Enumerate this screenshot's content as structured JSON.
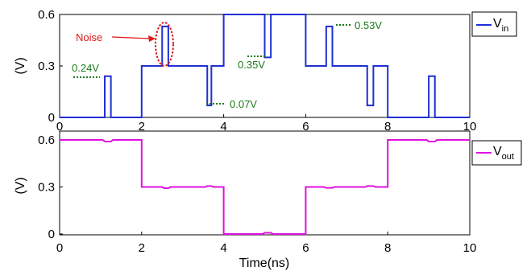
{
  "chart_data": [
    {
      "type": "line",
      "ylabel": "(V)",
      "xlabel": "",
      "xlim": [
        0,
        10
      ],
      "ylim": [
        0,
        0.6
      ],
      "xticks": [
        "0",
        "2",
        "4",
        "6",
        "8",
        "10"
      ],
      "yticks": [
        "0",
        "0.3",
        "0.6"
      ],
      "grid": false,
      "legend": "right-top",
      "series": [
        {
          "name": "V_in",
          "legend_main": "V",
          "legend_sub": "in",
          "color": "#1f2fd4",
          "x": [
            0,
            1.1,
            1.1,
            1.25,
            1.25,
            2,
            2,
            2.5,
            2.5,
            2.65,
            2.65,
            3.6,
            3.6,
            3.7,
            3.7,
            4,
            4,
            5,
            5,
            5.15,
            5.15,
            6,
            6,
            6.5,
            6.5,
            6.65,
            6.65,
            7.5,
            7.5,
            7.65,
            7.65,
            8,
            8,
            9,
            9,
            9.15,
            9.15,
            10
          ],
          "y": [
            0,
            0,
            0.24,
            0.24,
            0,
            0,
            0.3,
            0.3,
            0.53,
            0.53,
            0.3,
            0.3,
            0.07,
            0.07,
            0.3,
            0.3,
            0.6,
            0.6,
            0.35,
            0.35,
            0.6,
            0.6,
            0.3,
            0.3,
            0.53,
            0.53,
            0.3,
            0.3,
            0.07,
            0.07,
            0.3,
            0.3,
            0,
            0,
            0.24,
            0.24,
            0,
            0
          ]
        }
      ],
      "annotations": [
        {
          "text": "Noise",
          "color": "#e01818"
        },
        {
          "text": "0.24V",
          "color": "#1a7a1a"
        },
        {
          "text": "0.07V",
          "color": "#1a7a1a"
        },
        {
          "text": "0.35V",
          "color": "#1a7a1a"
        },
        {
          "text": "0.53V",
          "color": "#1a7a1a"
        }
      ]
    },
    {
      "type": "line",
      "ylabel": "(V)",
      "xlabel": "Time(ns)",
      "xlim": [
        0,
        10
      ],
      "ylim": [
        0,
        0.6
      ],
      "xticks": [
        "0",
        "2",
        "4",
        "6",
        "8",
        "10"
      ],
      "yticks": [
        "0",
        "0.3",
        "0.6"
      ],
      "grid": false,
      "legend": "right-top",
      "series": [
        {
          "name": "V_out",
          "legend_main": "V",
          "legend_sub": "out",
          "color": "#e010e0",
          "x": [
            0,
            1.05,
            1.1,
            1.25,
            1.3,
            2,
            2,
            2.5,
            2.55,
            2.65,
            2.7,
            3.55,
            3.6,
            3.7,
            3.75,
            4,
            4,
            4.95,
            5,
            5.15,
            5.2,
            6,
            6,
            6.45,
            6.5,
            6.65,
            6.7,
            7.45,
            7.5,
            7.65,
            7.7,
            8,
            8,
            8.95,
            9,
            9.15,
            9.2,
            10
          ],
          "y": [
            0.6,
            0.6,
            0.59,
            0.59,
            0.6,
            0.6,
            0.3,
            0.3,
            0.292,
            0.292,
            0.3,
            0.3,
            0.306,
            0.306,
            0.3,
            0.3,
            0,
            0,
            0.008,
            0.008,
            0,
            0,
            0.3,
            0.3,
            0.294,
            0.294,
            0.3,
            0.3,
            0.306,
            0.306,
            0.3,
            0.3,
            0.6,
            0.6,
            0.59,
            0.59,
            0.6,
            0.6
          ]
        }
      ]
    }
  ]
}
